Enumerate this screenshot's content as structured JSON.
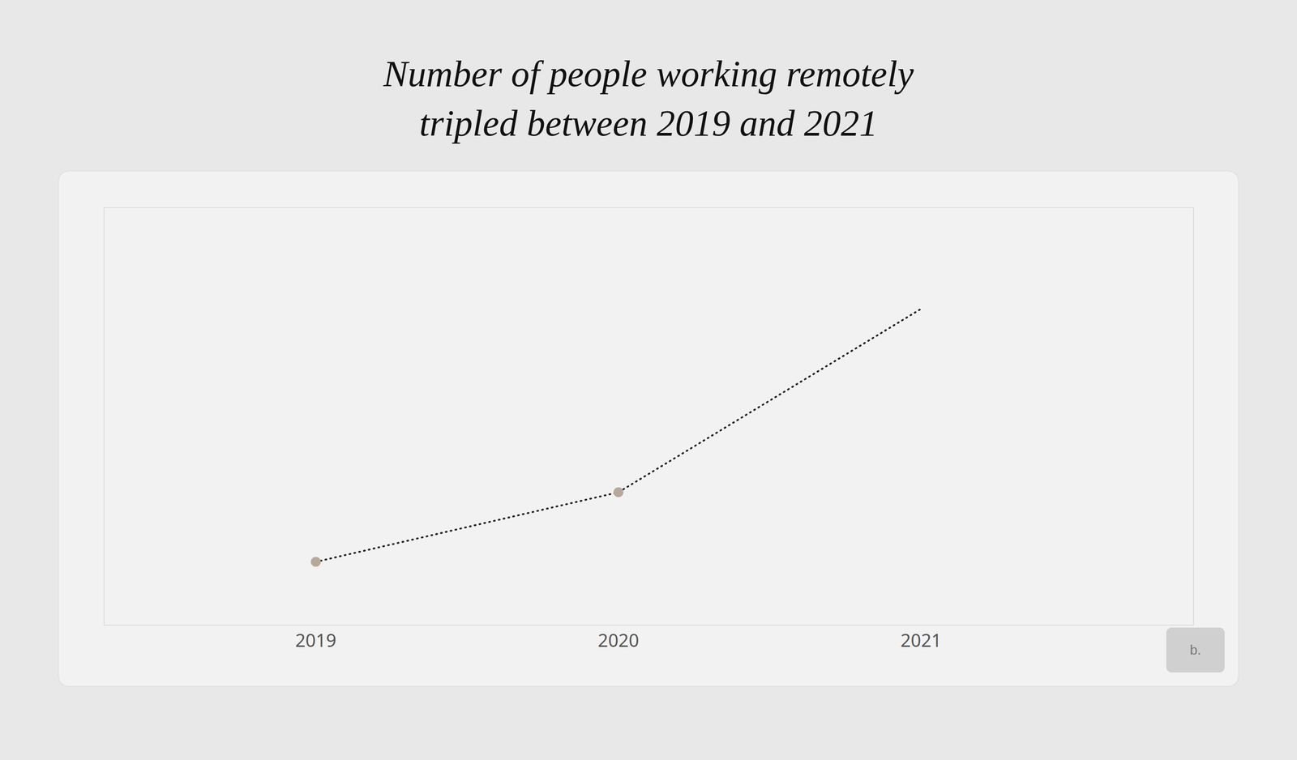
{
  "chart_data": {
    "type": "line",
    "title": "Number of people working remotely",
    "subtitle": "tripled between 2019 and 2021",
    "x": [
      2019,
      2020,
      2021
    ],
    "values": [
      1.0,
      1.55,
      3.0
    ],
    "color": "#222222",
    "line_style": "dotted",
    "marker": "circle",
    "colors": [
      "#b5a99a",
      "#b5a99a",
      null
    ],
    "xlim": [
      2018.3,
      2021.9
    ],
    "xticks": [
      2019,
      2020,
      2021
    ],
    "ylim": [
      0.5,
      3.8
    ],
    "tick_labels": "x",
    "grid": false,
    "annotation": "b."
  }
}
